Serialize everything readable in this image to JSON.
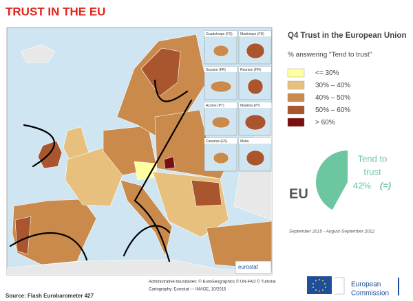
{
  "header": {
    "title": "TRUST IN THE EU"
  },
  "map": {
    "insets": [
      "Guadeloupe (FR)",
      "Martinique (FR)",
      "Guyane (FR)",
      "Réunion (FR)",
      "Açores (PT)",
      "Madeira (PT)",
      "Canarias (ES)",
      "Malta"
    ],
    "logo": "eurostat",
    "credits": [
      "Administrative boundaries: © EuroGeographics © UN-FAO © Turkstat",
      "Cartography: Eurostat — IMAGE, 10/2015"
    ]
  },
  "legend": {
    "title": "Q4 Trust in the European Union",
    "subtitle": "% answering \"Tend to trust\"",
    "items": [
      {
        "label": "<= 30%",
        "color": "#ffffa0"
      },
      {
        "label": "30% – 40%",
        "color": "#e6c07c"
      },
      {
        "label": "40% – 50%",
        "color": "#c98a4c"
      },
      {
        "label": "50% – 60%",
        "color": "#a9552e"
      },
      {
        "label": "> 60%",
        "color": "#7a0f0f"
      }
    ]
  },
  "summary": {
    "region": "EU",
    "caption_lines": [
      "Tend to",
      "trust"
    ],
    "value": 42,
    "value_label": "42%",
    "change": "(=)",
    "color": "#6cc6a0",
    "period": "September 2015 - August-September 2012"
  },
  "footer": {
    "source": "Source: Flash Eurobarometer 427",
    "brand_lines": [
      "European",
      "Commission"
    ]
  }
}
